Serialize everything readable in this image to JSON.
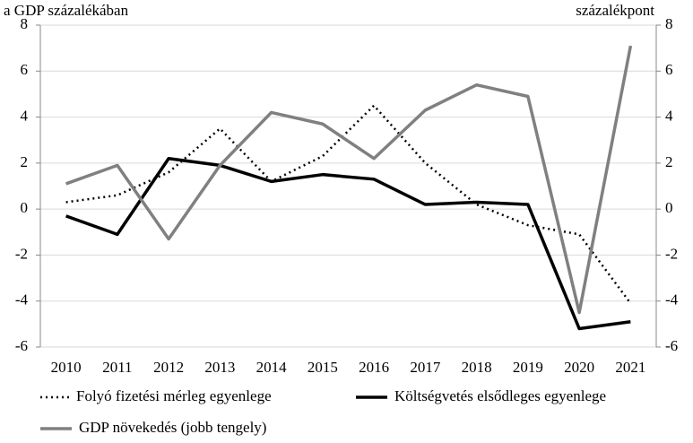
{
  "chart_data": {
    "type": "line",
    "y_label": "a GDP százalékában",
    "y2_label": "százalékpont",
    "categories": [
      "2010",
      "2011",
      "2012",
      "2013",
      "2014",
      "2015",
      "2016",
      "2017",
      "2018",
      "2019",
      "2020",
      "2021"
    ],
    "series": [
      {
        "name": "Folyó fizetési mérleg egyenlege",
        "color": "#000000",
        "style": "dotted",
        "values": [
          0.3,
          0.6,
          1.6,
          3.5,
          1.2,
          2.3,
          4.5,
          2.0,
          0.2,
          -0.7,
          -1.1,
          -4.1
        ]
      },
      {
        "name": "Költségvetés elsődleges egyenlege",
        "color": "#000000",
        "style": "solid",
        "values": [
          -0.3,
          -1.1,
          2.2,
          1.9,
          1.2,
          1.5,
          1.3,
          0.2,
          0.3,
          0.2,
          -5.2,
          -4.9
        ]
      },
      {
        "name": "GDP növekedés (jobb tengely)",
        "color": "#808080",
        "style": "solid",
        "axis": "y2",
        "values": [
          1.1,
          1.9,
          -1.3,
          1.9,
          4.2,
          3.7,
          2.2,
          4.3,
          5.4,
          4.9,
          -4.5,
          7.1
        ]
      }
    ],
    "ylim": [
      -6,
      8
    ],
    "yticks": [
      -6,
      -4,
      -2,
      0,
      2,
      4,
      6,
      8
    ],
    "y2lim": [
      -6,
      8
    ],
    "y2ticks": [
      -6,
      -4,
      -2,
      0,
      2,
      4,
      6,
      8
    ],
    "grid": true,
    "legend": "bottom"
  }
}
